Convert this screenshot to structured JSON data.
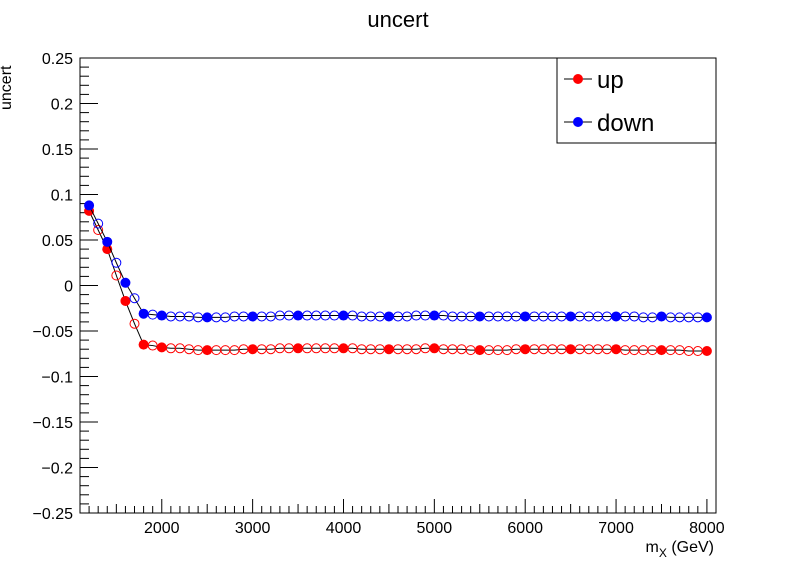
{
  "chart_data": {
    "type": "scatter",
    "title": "uncert",
    "xlabel": "m_X (GeV)",
    "xlabel_main": "m",
    "xlabel_sub": "X",
    "xlabel_rest": " (GeV)",
    "ylabel": "uncert",
    "xlim": [
      1100,
      8100
    ],
    "ylim": [
      -0.25,
      0.25
    ],
    "x_ticks": [
      "2000",
      "3000",
      "4000",
      "5000",
      "6000",
      "7000",
      "8000"
    ],
    "y_ticks": [
      "0.25",
      "0.2",
      "0.15",
      "0.1",
      "0.05",
      "0",
      "−0.05",
      "−0.1",
      "−0.15",
      "−0.2",
      "−0.25"
    ],
    "legend_position": "top-right",
    "grid": false,
    "series": [
      {
        "name": "up",
        "color": "#ff0000",
        "filled": [
          [
            1200,
            0.082
          ],
          [
            1400,
            0.04
          ],
          [
            1600,
            -0.017
          ],
          [
            1800,
            -0.065
          ],
          [
            2000,
            -0.068
          ],
          [
            2500,
            -0.071
          ],
          [
            3000,
            -0.07
          ],
          [
            3500,
            -0.069
          ],
          [
            4000,
            -0.069
          ],
          [
            4500,
            -0.07
          ],
          [
            5000,
            -0.069
          ],
          [
            5500,
            -0.071
          ],
          [
            6000,
            -0.07
          ],
          [
            6500,
            -0.07
          ],
          [
            7000,
            -0.07
          ],
          [
            7500,
            -0.071
          ],
          [
            8000,
            -0.072
          ]
        ],
        "open": [
          [
            1300,
            0.061
          ],
          [
            1500,
            0.011
          ],
          [
            1700,
            -0.042
          ],
          [
            1900,
            -0.066
          ],
          [
            2100,
            -0.069
          ],
          [
            2200,
            -0.069
          ],
          [
            2300,
            -0.07
          ],
          [
            2400,
            -0.071
          ],
          [
            2600,
            -0.071
          ],
          [
            2700,
            -0.071
          ],
          [
            2800,
            -0.071
          ],
          [
            2900,
            -0.07
          ],
          [
            3100,
            -0.07
          ],
          [
            3200,
            -0.07
          ],
          [
            3300,
            -0.069
          ],
          [
            3400,
            -0.069
          ],
          [
            3600,
            -0.069
          ],
          [
            3700,
            -0.069
          ],
          [
            3800,
            -0.069
          ],
          [
            3900,
            -0.069
          ],
          [
            4100,
            -0.069
          ],
          [
            4200,
            -0.07
          ],
          [
            4300,
            -0.07
          ],
          [
            4400,
            -0.07
          ],
          [
            4600,
            -0.07
          ],
          [
            4700,
            -0.07
          ],
          [
            4800,
            -0.07
          ],
          [
            4900,
            -0.069
          ],
          [
            5100,
            -0.07
          ],
          [
            5200,
            -0.07
          ],
          [
            5300,
            -0.07
          ],
          [
            5400,
            -0.071
          ],
          [
            5600,
            -0.071
          ],
          [
            5700,
            -0.071
          ],
          [
            5800,
            -0.071
          ],
          [
            5900,
            -0.07
          ],
          [
            6100,
            -0.07
          ],
          [
            6200,
            -0.07
          ],
          [
            6300,
            -0.07
          ],
          [
            6400,
            -0.07
          ],
          [
            6600,
            -0.07
          ],
          [
            6700,
            -0.07
          ],
          [
            6800,
            -0.07
          ],
          [
            6900,
            -0.07
          ],
          [
            7100,
            -0.071
          ],
          [
            7200,
            -0.071
          ],
          [
            7300,
            -0.071
          ],
          [
            7400,
            -0.071
          ],
          [
            7600,
            -0.071
          ],
          [
            7700,
            -0.071
          ],
          [
            7800,
            -0.072
          ],
          [
            7900,
            -0.072
          ]
        ]
      },
      {
        "name": "down",
        "color": "#0000ff",
        "filled": [
          [
            1200,
            0.088
          ],
          [
            1400,
            0.048
          ],
          [
            1600,
            0.003
          ],
          [
            1800,
            -0.031
          ],
          [
            2000,
            -0.033
          ],
          [
            2500,
            -0.035
          ],
          [
            3000,
            -0.034
          ],
          [
            3500,
            -0.033
          ],
          [
            4000,
            -0.033
          ],
          [
            4500,
            -0.034
          ],
          [
            5000,
            -0.033
          ],
          [
            5500,
            -0.034
          ],
          [
            6000,
            -0.034
          ],
          [
            6500,
            -0.034
          ],
          [
            7000,
            -0.034
          ],
          [
            7500,
            -0.034
          ],
          [
            8000,
            -0.035
          ]
        ],
        "open": [
          [
            1300,
            0.068
          ],
          [
            1500,
            0.025
          ],
          [
            1700,
            -0.014
          ],
          [
            1900,
            -0.032
          ],
          [
            2100,
            -0.034
          ],
          [
            2200,
            -0.034
          ],
          [
            2300,
            -0.034
          ],
          [
            2400,
            -0.035
          ],
          [
            2600,
            -0.035
          ],
          [
            2700,
            -0.035
          ],
          [
            2800,
            -0.034
          ],
          [
            2900,
            -0.034
          ],
          [
            3100,
            -0.034
          ],
          [
            3200,
            -0.034
          ],
          [
            3300,
            -0.033
          ],
          [
            3400,
            -0.033
          ],
          [
            3600,
            -0.033
          ],
          [
            3700,
            -0.033
          ],
          [
            3800,
            -0.033
          ],
          [
            3900,
            -0.033
          ],
          [
            4100,
            -0.033
          ],
          [
            4200,
            -0.034
          ],
          [
            4300,
            -0.034
          ],
          [
            4400,
            -0.034
          ],
          [
            4600,
            -0.034
          ],
          [
            4700,
            -0.034
          ],
          [
            4800,
            -0.033
          ],
          [
            4900,
            -0.033
          ],
          [
            5100,
            -0.033
          ],
          [
            5200,
            -0.034
          ],
          [
            5300,
            -0.034
          ],
          [
            5400,
            -0.034
          ],
          [
            5600,
            -0.034
          ],
          [
            5700,
            -0.034
          ],
          [
            5800,
            -0.034
          ],
          [
            5900,
            -0.034
          ],
          [
            6100,
            -0.034
          ],
          [
            6200,
            -0.034
          ],
          [
            6300,
            -0.034
          ],
          [
            6400,
            -0.034
          ],
          [
            6600,
            -0.034
          ],
          [
            6700,
            -0.034
          ],
          [
            6800,
            -0.034
          ],
          [
            6900,
            -0.034
          ],
          [
            7100,
            -0.034
          ],
          [
            7200,
            -0.034
          ],
          [
            7300,
            -0.035
          ],
          [
            7400,
            -0.035
          ],
          [
            7600,
            -0.035
          ],
          [
            7700,
            -0.035
          ],
          [
            7800,
            -0.035
          ],
          [
            7900,
            -0.035
          ]
        ]
      }
    ]
  }
}
